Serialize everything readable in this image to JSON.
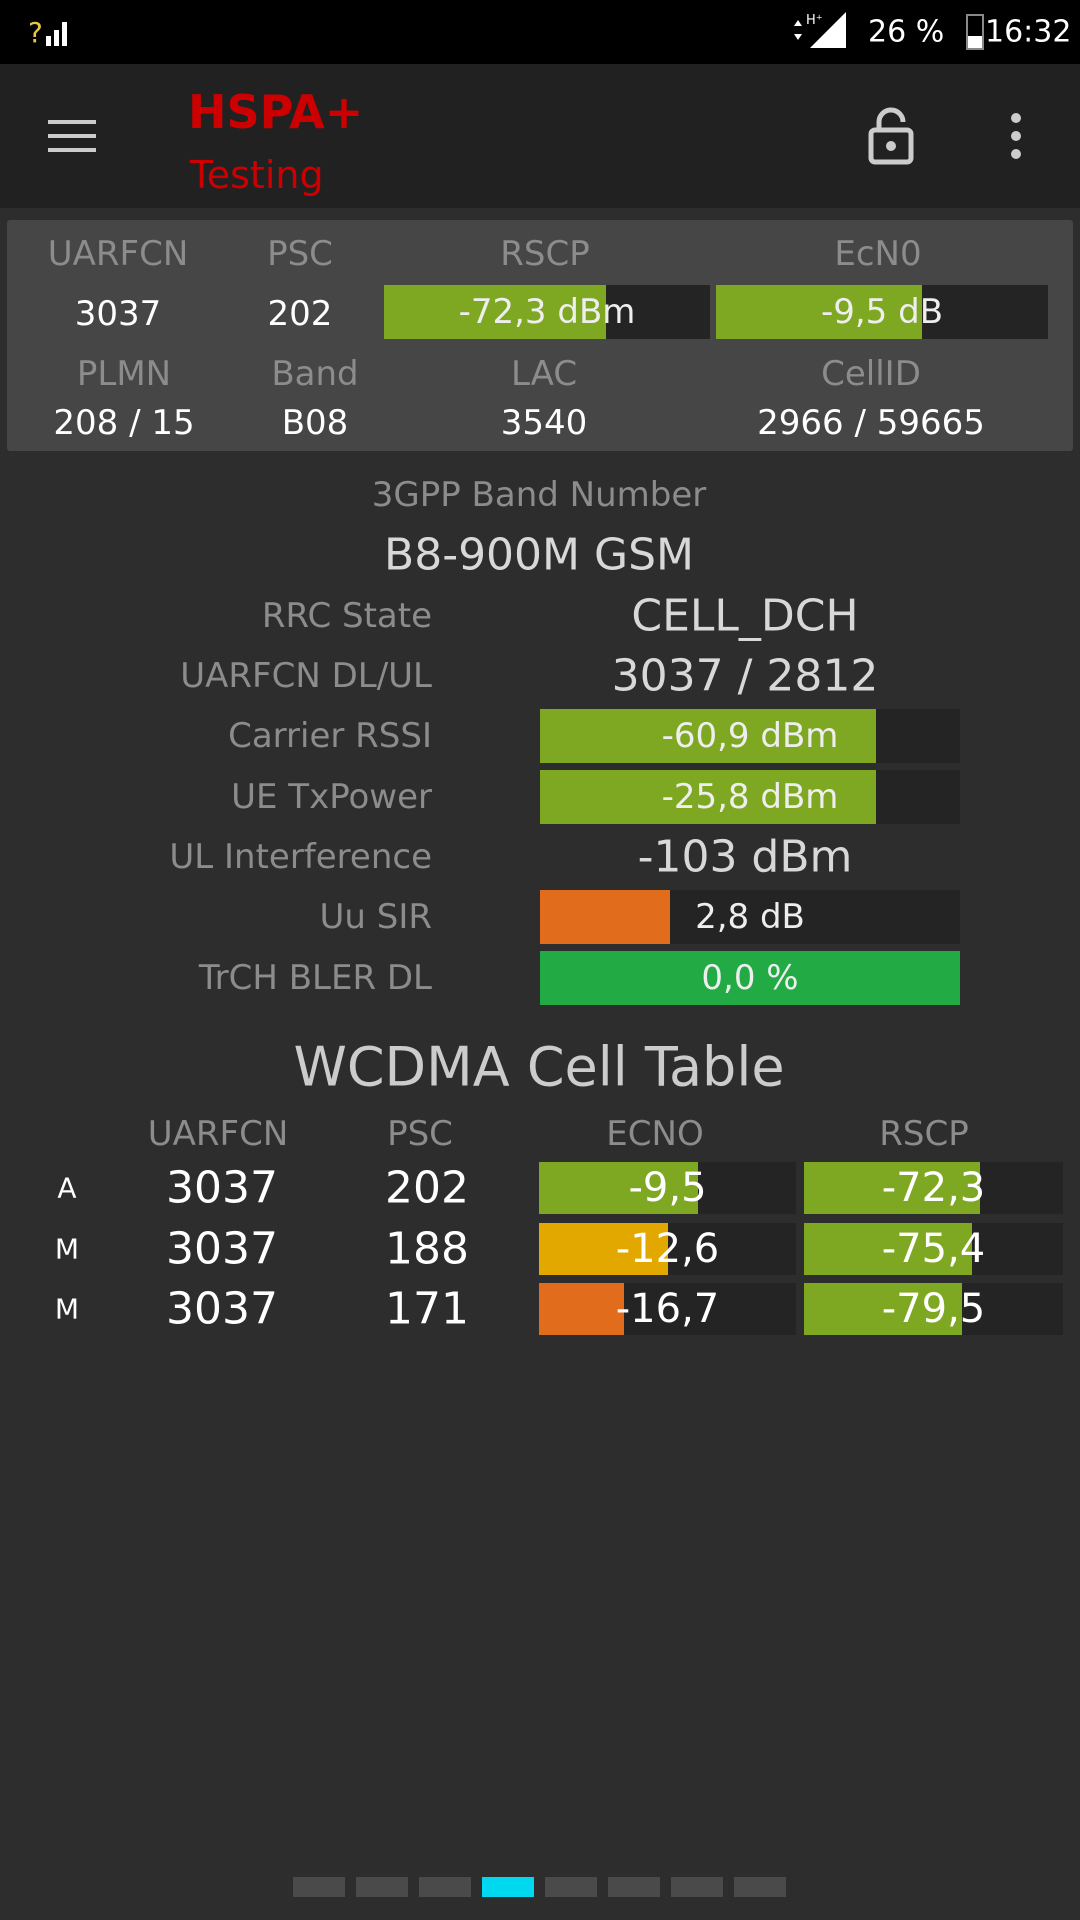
{
  "status_bar": {
    "battery": "26 %",
    "time": "16:32"
  },
  "header": {
    "title": "HSPA+",
    "subtitle": "Testing"
  },
  "summary": {
    "labels_top": [
      "UARFCN",
      "PSC",
      "RSCP",
      "EcN0"
    ],
    "values_top": [
      "3037",
      "202",
      "-72,3 dBm",
      "-9,5 dB"
    ],
    "labels_bottom": [
      "PLMN",
      "Band",
      "LAC",
      "CellID"
    ],
    "values_bottom": [
      "208 / 15",
      "B08",
      "3540",
      "2966 / 59665"
    ]
  },
  "band": {
    "label": "3GPP Band Number",
    "value": "B8-900M GSM"
  },
  "details": [
    {
      "label": "RRC State",
      "value": "CELL_DCH"
    },
    {
      "label": "UARFCN DL/UL",
      "value": "3037 / 2812"
    },
    {
      "label": "Carrier RSSI",
      "value": "-60,9 dBm"
    },
    {
      "label": "UE TxPower",
      "value": "-25,8 dBm"
    },
    {
      "label": "UL Interference",
      "value": "-103 dBm"
    },
    {
      "label": "Uu SIR",
      "value": "2,8 dB"
    },
    {
      "label": "TrCH BLER DL",
      "value": "0,0 %"
    }
  ],
  "cell_table": {
    "title": "WCDMA Cell Table",
    "columns": [
      "UARFCN",
      "PSC",
      "ECNO",
      "RSCP"
    ],
    "rows": [
      [
        "A",
        "3037",
        "202",
        "-9,5",
        "-72,3"
      ],
      [
        "M",
        "3037",
        "188",
        "-12,6",
        "-75,4"
      ],
      [
        "M",
        "3037",
        "171",
        "-16,7",
        "-79,5"
      ]
    ]
  }
}
